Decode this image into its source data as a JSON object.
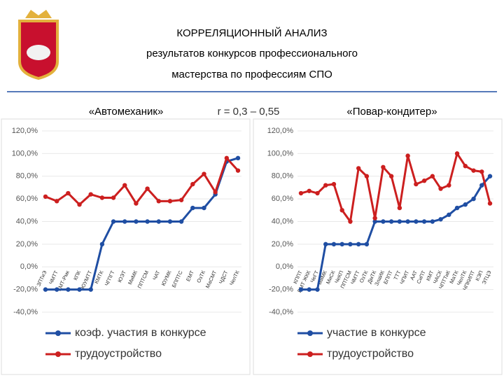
{
  "header": {
    "title": "КОРРЕЛЯЦИОННЫЙ АНАЛИЗ",
    "lines": [
      "результатов конкурсов профессионального",
      "мастерства по профессиям  СПО"
    ]
  },
  "correlation": "r = 0,3 – 0,55",
  "chart_data": [
    {
      "type": "line",
      "title": "«Автомеханик»",
      "categories": [
        "ЗПТиЭ",
        "ЧМТТ",
        "КМТ-Рмк",
        "КПК",
        "ЮУМТТ",
        "КМТК",
        "ЧГПГТ",
        "ЮЭТ",
        "МиМК",
        "ППТСМ",
        "ЧАТ",
        "ЮУМК",
        "БППТС",
        "ЕМТ",
        "ОзТК",
        "МаСМТ",
        "ЧДСТ",
        "ЧелТК"
      ],
      "series": [
        {
          "name": "коэф. участия в конкурсе",
          "color": "#1f4ea3",
          "values": [
            -20,
            -20,
            -20,
            -20,
            -20,
            20,
            40,
            40,
            40,
            40,
            40,
            40,
            40,
            52,
            52,
            64,
            93,
            96
          ]
        },
        {
          "name": "трудоустройство",
          "color": "#cc1f1f",
          "values": [
            62,
            58,
            65,
            55,
            64,
            61,
            61,
            72,
            56,
            69,
            58,
            58,
            59,
            73,
            82,
            66,
            96,
            85
          ]
        }
      ],
      "ylim": [
        -40,
        120
      ],
      "yticks": [
        {
          "value": -40,
          "label": "-40,0%"
        },
        {
          "value": -20,
          "label": "-20,0%"
        },
        {
          "value": 0,
          "label": "0,0%"
        },
        {
          "value": 20,
          "label": "20,0%"
        },
        {
          "value": 40,
          "label": "40,0%"
        },
        {
          "value": 60,
          "label": "60,0%"
        },
        {
          "value": 80,
          "label": "80,0%"
        },
        {
          "value": 100,
          "label": "100,0%"
        },
        {
          "value": 120,
          "label": "120,0%"
        }
      ]
    },
    {
      "type": "line",
      "title": "«Повар-кондитер»",
      "categories": [
        "КППТ",
        "ВМТ ЖКК",
        "ЧеГТ",
        "МиМК",
        "МиСК",
        "ЧеКП",
        "ППТСМ",
        "ЧМТТ",
        "ОзТК",
        "ДмТК",
        "ЗлаИК",
        "БППТ",
        "ТТТ",
        "ЧПИТ",
        "ААТ",
        "СиПТ",
        "КМТ",
        "ЧАСК",
        "ЧПТТиК",
        "МаТК",
        "ЧелТК",
        "ЧПКИПТ",
        "КЭП",
        "ЭТЦЭ"
      ],
      "series": [
        {
          "name": "участие в конкурсе",
          "color": "#1f4ea3",
          "values": [
            -20,
            -20,
            -20,
            20,
            20,
            20,
            20,
            20,
            20,
            40,
            40,
            40,
            40,
            40,
            40,
            40,
            40,
            42,
            46,
            52,
            55,
            60,
            72,
            80
          ]
        },
        {
          "name": "трудоустройство",
          "color": "#cc1f1f",
          "values": [
            65,
            67,
            65,
            72,
            73,
            50,
            40,
            87,
            80,
            43,
            88,
            80,
            52,
            98,
            73,
            76,
            80,
            69,
            72,
            100,
            89,
            85,
            84,
            56
          ]
        }
      ],
      "ylim": [
        -40,
        120
      ],
      "yticks": [
        {
          "value": -40,
          "label": "-40,0%"
        },
        {
          "value": -20,
          "label": "-20,0%"
        },
        {
          "value": 0,
          "label": "0,0%"
        },
        {
          "value": 20,
          "label": "20,0%"
        },
        {
          "value": 40,
          "label": "40,0%"
        },
        {
          "value": 60,
          "label": "60,0%"
        },
        {
          "value": 80,
          "label": "80,0%"
        },
        {
          "value": 100,
          "label": "100,0%"
        },
        {
          "value": 120,
          "label": "120,0%"
        }
      ]
    }
  ]
}
